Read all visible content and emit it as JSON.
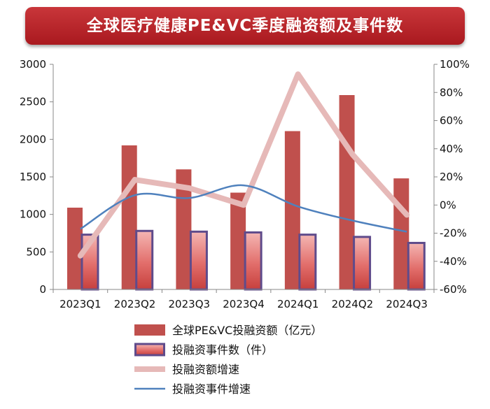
{
  "chart_data": {
    "type": "bar",
    "title": "全球医疗健康PE&VC季度融资额及事件数",
    "categories": [
      "2023Q1",
      "2023Q2",
      "2023Q3",
      "2023Q4",
      "2024Q1",
      "2024Q2",
      "2024Q3"
    ],
    "series": [
      {
        "name": "全球PE&VC投融资额（亿元）",
        "kind": "bar",
        "axis": "left",
        "values": [
          1090,
          1920,
          1600,
          1290,
          2110,
          2590,
          1480
        ],
        "color": "#c0504d"
      },
      {
        "name": "投融资事件数（件）",
        "kind": "bar",
        "axis": "left",
        "values": [
          730,
          780,
          770,
          760,
          730,
          700,
          620
        ],
        "color": "#e07a78",
        "border": "#5f4b8b"
      },
      {
        "name": "投融资额增速",
        "kind": "line",
        "axis": "right",
        "values": [
          -36,
          18,
          12,
          0,
          93,
          36,
          -7
        ],
        "color": "#e6b9b8"
      },
      {
        "name": "投融资事件增速",
        "kind": "line",
        "axis": "right",
        "values": [
          -17,
          7,
          5,
          14,
          -1,
          -11,
          -19
        ],
        "color": "#4f81bd"
      }
    ],
    "y_left": {
      "min": 0,
      "max": 3000,
      "step": 500,
      "ticks": [
        "0",
        "500",
        "1000",
        "1500",
        "2000",
        "2500",
        "3000"
      ]
    },
    "y_right": {
      "min": -60,
      "max": 100,
      "step": 20,
      "ticks": [
        "-60%",
        "-40%",
        "-20%",
        "0%",
        "20%",
        "40%",
        "60%",
        "80%",
        "100%"
      ]
    },
    "grid": false,
    "legend_position": "bottom"
  }
}
